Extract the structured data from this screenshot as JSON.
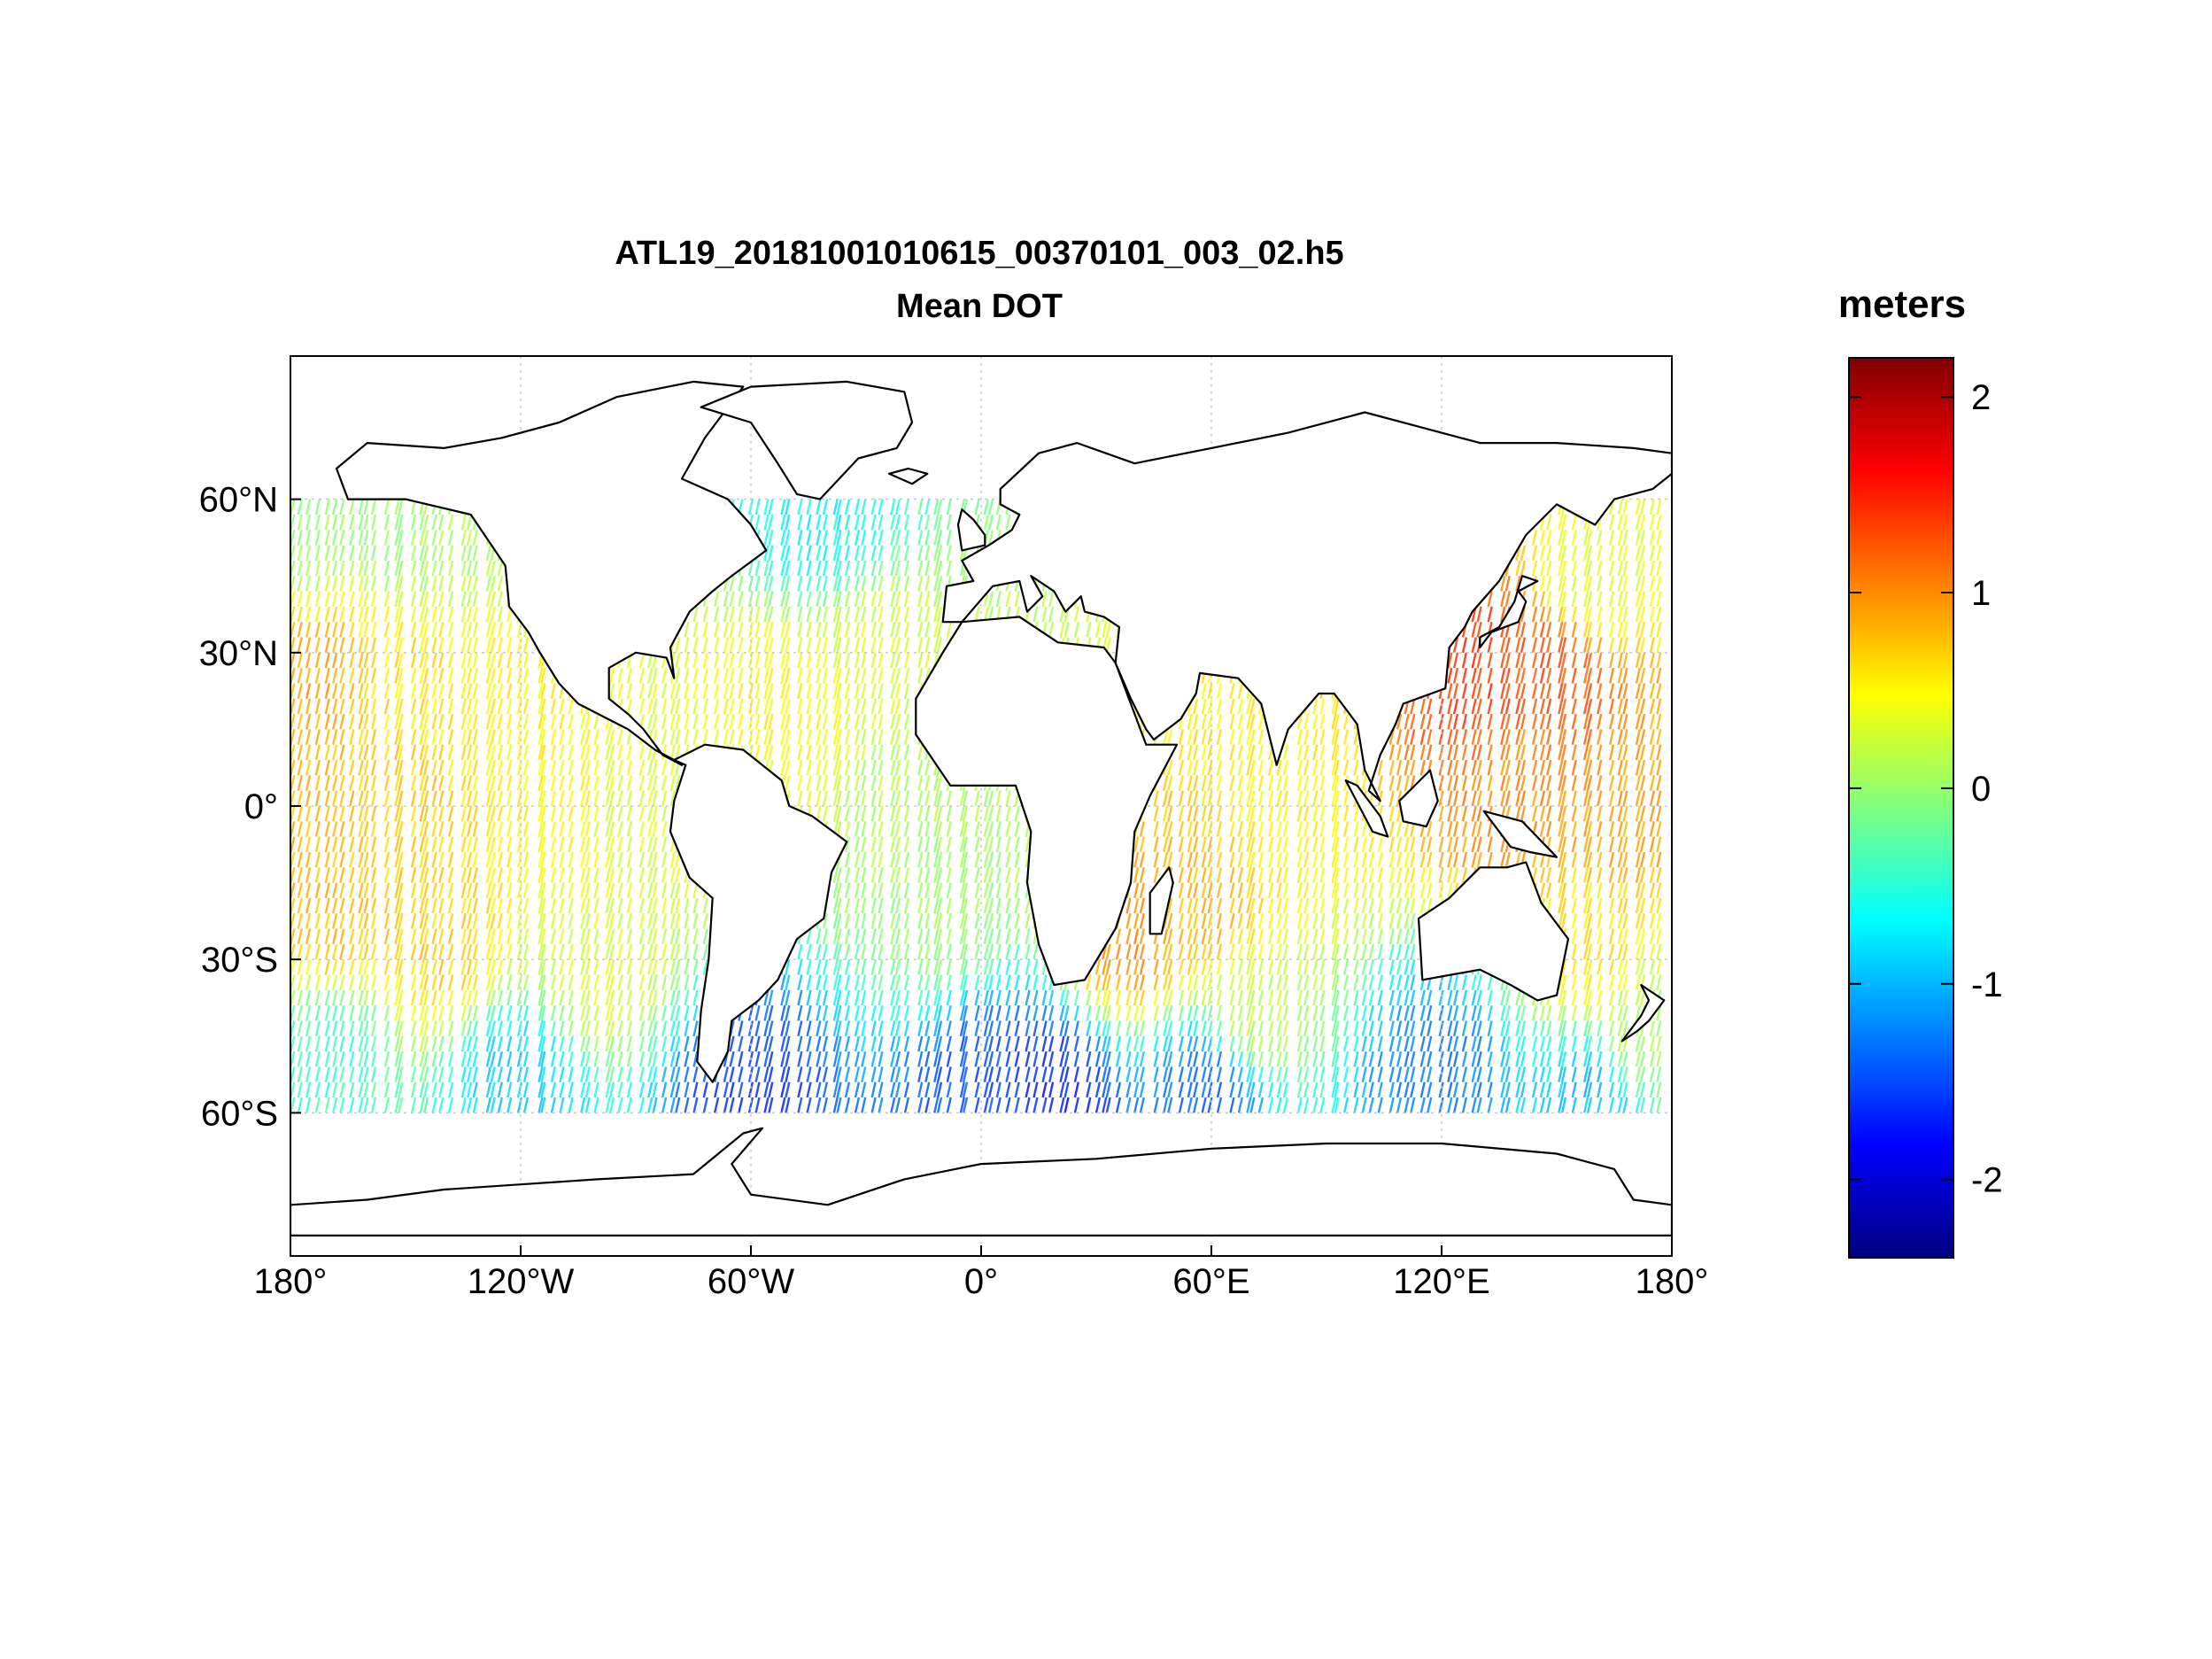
{
  "figure": {
    "title_line1": "ATL19_20181001010615_00370101_003_02.h5",
    "title_line2": "Mean DOT"
  },
  "map": {
    "projection": "equirectangular",
    "lon_range": [
      -180,
      180
    ],
    "lat_range": [
      -88,
      88
    ],
    "data_lat_range": [
      -60,
      60
    ],
    "grid": true,
    "xticks": [
      {
        "lon": -180,
        "label": "180°"
      },
      {
        "lon": -120,
        "label": "120°W"
      },
      {
        "lon": -60,
        "label": "60°W"
      },
      {
        "lon": 0,
        "label": "0°"
      },
      {
        "lon": 60,
        "label": "60°E"
      },
      {
        "lon": 120,
        "label": "120°E"
      },
      {
        "lon": 180,
        "label": "180°"
      }
    ],
    "yticks": [
      {
        "lat": 60,
        "label": "60°N"
      },
      {
        "lat": 30,
        "label": "30°N"
      },
      {
        "lat": 0,
        "label": "0°"
      },
      {
        "lat": -30,
        "label": "30°S"
      },
      {
        "lat": -60,
        "label": "60°S"
      }
    ],
    "colors": {
      "land_fill": "#ffffff",
      "coastline": "#000000",
      "grid": "#c8c8c8",
      "frame": "#000000"
    }
  },
  "colorbar": {
    "label": "meters",
    "colormap": "jet",
    "range": [
      -2.4,
      2.2
    ],
    "ticks": [
      {
        "value": 2,
        "label": "2"
      },
      {
        "value": 1,
        "label": "1"
      },
      {
        "value": 0,
        "label": "0"
      },
      {
        "value": -1,
        "label": "-1"
      },
      {
        "value": -2,
        "label": "-2"
      }
    ]
  },
  "chart_data": {
    "type": "heatmap",
    "variable": "Mean DOT",
    "units": "meters",
    "samples_lon_lat_value": [
      [
        -175,
        55,
        0.0
      ],
      [
        -150,
        55,
        0.0
      ],
      [
        -130,
        55,
        0.1
      ],
      [
        -175,
        25,
        0.9
      ],
      [
        -150,
        25,
        0.6
      ],
      [
        -120,
        20,
        0.5
      ],
      [
        -175,
        5,
        0.8
      ],
      [
        -150,
        0,
        0.7
      ],
      [
        -110,
        0,
        0.5
      ],
      [
        -90,
        0,
        0.3
      ],
      [
        -170,
        -20,
        0.8
      ],
      [
        -140,
        -25,
        0.7
      ],
      [
        -100,
        -30,
        0.3
      ],
      [
        -170,
        -50,
        -0.4
      ],
      [
        -120,
        -55,
        -0.9
      ],
      [
        -60,
        -58,
        -1.6
      ],
      [
        -40,
        55,
        -0.7
      ],
      [
        -30,
        30,
        0.3
      ],
      [
        -50,
        20,
        0.5
      ],
      [
        -20,
        0,
        0.1
      ],
      [
        -10,
        -20,
        0.0
      ],
      [
        0,
        -55,
        -1.5
      ],
      [
        20,
        -58,
        -1.7
      ],
      [
        60,
        -55,
        -1.4
      ],
      [
        120,
        -55,
        -1.3
      ],
      [
        160,
        -55,
        -1.0
      ],
      [
        60,
        -20,
        0.8
      ],
      [
        40,
        -25,
        1.0
      ],
      [
        80,
        0,
        0.5
      ],
      [
        70,
        -40,
        0.2
      ],
      [
        130,
        25,
        1.4
      ],
      [
        150,
        25,
        1.3
      ],
      [
        160,
        45,
        0.3
      ],
      [
        140,
        5,
        1.0
      ],
      [
        170,
        0,
        0.9
      ],
      [
        160,
        -30,
        0.6
      ],
      [
        170,
        -45,
        0.1
      ]
    ]
  }
}
